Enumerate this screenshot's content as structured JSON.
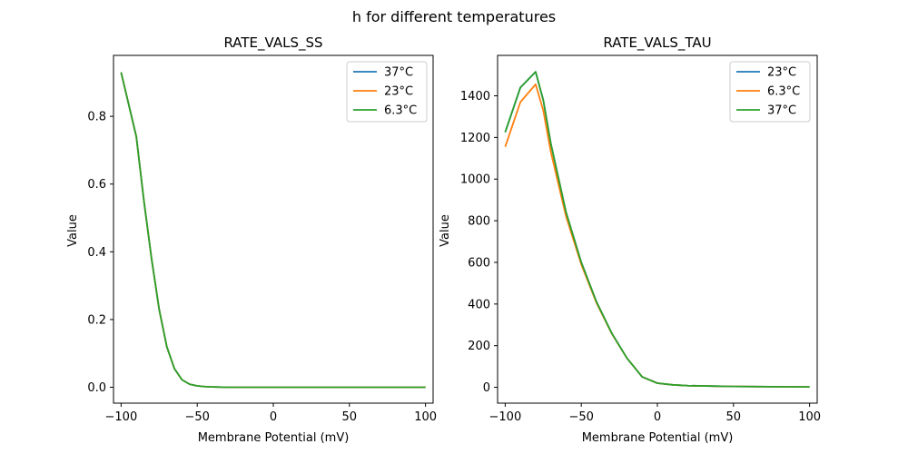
{
  "figure_title": "h for different temperatures",
  "chart_data": [
    {
      "type": "line",
      "title": "RATE_VALS_SS",
      "xlabel": "Membrane Potential (mV)",
      "ylabel": "Value",
      "xlim": [
        -105,
        105
      ],
      "ylim": [
        -0.047,
        0.98
      ],
      "xticks": [
        -100,
        -50,
        0,
        50,
        100
      ],
      "yticks": [
        0.0,
        0.2,
        0.4,
        0.6,
        0.8
      ],
      "ytick_labels": [
        "0.0",
        "0.2",
        "0.4",
        "0.6",
        "0.8"
      ],
      "grid": false,
      "legend_position": "top-right",
      "x": [
        -100,
        -90,
        -85,
        -80,
        -75,
        -70,
        -65,
        -60,
        -55,
        -50,
        -45,
        -40,
        -30,
        -20,
        0,
        50,
        100
      ],
      "series": [
        {
          "name": "37°C",
          "color": "#1f77b4",
          "values": [
            0.93,
            0.74,
            0.55,
            0.38,
            0.23,
            0.12,
            0.055,
            0.022,
            0.009,
            0.004,
            0.002,
            0.001,
            0.0,
            0.0,
            0.0,
            0.0,
            0.0
          ]
        },
        {
          "name": "23°C",
          "color": "#ff7f0e",
          "values": [
            0.93,
            0.74,
            0.55,
            0.38,
            0.23,
            0.12,
            0.055,
            0.022,
            0.009,
            0.004,
            0.002,
            0.001,
            0.0,
            0.0,
            0.0,
            0.0,
            0.0
          ]
        },
        {
          "name": "6.3°C",
          "color": "#2ca02c",
          "values": [
            0.93,
            0.74,
            0.55,
            0.38,
            0.23,
            0.12,
            0.055,
            0.022,
            0.009,
            0.004,
            0.002,
            0.001,
            0.0,
            0.0,
            0.0,
            0.0,
            0.0
          ]
        }
      ]
    },
    {
      "type": "line",
      "title": "RATE_VALS_TAU",
      "xlabel": "Membrane Potential (mV)",
      "ylabel": "Value",
      "xlim": [
        -105,
        105
      ],
      "ylim": [
        -76,
        1594
      ],
      "xticks": [
        -100,
        -50,
        0,
        50,
        100
      ],
      "yticks": [
        0,
        200,
        400,
        600,
        800,
        1000,
        1200,
        1400
      ],
      "ytick_labels": [
        "0",
        "200",
        "400",
        "600",
        "800",
        "1000",
        "1200",
        "1400"
      ],
      "grid": false,
      "legend_position": "top-right",
      "x": [
        -100,
        -90,
        -80,
        -75,
        -70,
        -60,
        -50,
        -40,
        -30,
        -20,
        -10,
        0,
        10,
        20,
        50,
        100
      ],
      "series": [
        {
          "name": "23°C",
          "color": "#1f77b4",
          "values": [
            1225,
            1440,
            1515,
            1380,
            1170,
            840,
            600,
            410,
            260,
            140,
            50,
            20,
            12,
            8,
            4,
            2
          ]
        },
        {
          "name": "6.3°C",
          "color": "#ff7f0e",
          "values": [
            1155,
            1370,
            1455,
            1330,
            1130,
            820,
            590,
            405,
            258,
            140,
            50,
            20,
            12,
            8,
            4,
            2
          ]
        },
        {
          "name": "37°C",
          "color": "#2ca02c",
          "values": [
            1225,
            1440,
            1515,
            1380,
            1170,
            840,
            600,
            410,
            260,
            140,
            50,
            20,
            12,
            8,
            4,
            2
          ]
        }
      ]
    }
  ]
}
